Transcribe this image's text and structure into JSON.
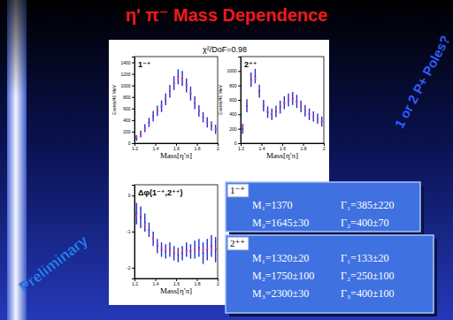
{
  "slide": {
    "title": "η' π⁻ Mass Dependence",
    "side_note": "1 or 2 P+ Poles?",
    "stamp": "Preliminary",
    "fits": [
      {
        "header": "1⁻⁺",
        "rows": [
          [
            "M₁=1370",
            "Γ₁=385±220"
          ],
          [
            "M₂=1645±30",
            "Γ₂=400±70"
          ]
        ]
      },
      {
        "header": "2⁺⁺",
        "rows": [
          [
            "M₁=1320±20",
            "Γ₁=133±20"
          ],
          [
            "M₂=1750±100",
            "Γ₂=250±100"
          ],
          [
            "M₃=2300±30",
            "Γ₃=400±100"
          ]
        ]
      }
    ]
  },
  "chart_data": [
    {
      "type": "scatter",
      "title": "1⁻⁺",
      "annotation": "χ²/DoF=0.98",
      "x_label": "Mass[η'π]",
      "y_label": "Events/40 MeV",
      "x": [
        1.22,
        1.26,
        1.3,
        1.34,
        1.38,
        1.42,
        1.46,
        1.5,
        1.54,
        1.58,
        1.62,
        1.66,
        1.7,
        1.74,
        1.78,
        1.82,
        1.86,
        1.9,
        1.94,
        1.98
      ],
      "xlim": [
        1.2,
        2.0
      ],
      "xticks": [
        1.2,
        1.4,
        1.6,
        1.8,
        2
      ],
      "ylim": [
        0,
        1500
      ],
      "yticks": [
        0,
        200,
        400,
        600,
        800,
        1000,
        1200,
        1400
      ],
      "series": [
        {
          "color": "#1f2fd0",
          "marker": "errorbar",
          "values": [
            90,
            160,
            260,
            360,
            470,
            560,
            640,
            760,
            900,
            1040,
            1150,
            1120,
            1000,
            860,
            700,
            560,
            450,
            360,
            300,
            240
          ],
          "errors": [
            50,
            60,
            70,
            80,
            90,
            90,
            100,
            100,
            110,
            120,
            130,
            130,
            120,
            120,
            110,
            100,
            90,
            90,
            80,
            80
          ]
        },
        {
          "color": "#ff3366",
          "marker": "dot",
          "values": [
            110,
            170,
            250,
            340,
            450,
            560,
            660,
            780,
            910,
            1030,
            1110,
            1100,
            1010,
            870,
            710,
            570,
            450,
            360,
            290,
            240
          ]
        }
      ]
    },
    {
      "type": "scatter",
      "title": "2⁺⁺",
      "x_label": "Mass[η'π]",
      "y_label": "Events/40 MeV",
      "x": [
        1.22,
        1.26,
        1.3,
        1.34,
        1.38,
        1.42,
        1.46,
        1.5,
        1.54,
        1.58,
        1.62,
        1.66,
        1.7,
        1.74,
        1.78,
        1.82,
        1.86,
        1.9,
        1.94,
        1.98
      ],
      "xlim": [
        1.2,
        2.0
      ],
      "xticks": [
        1.2,
        1.4,
        1.6,
        1.8,
        2
      ],
      "ylim": [
        0,
        1200
      ],
      "yticks": [
        0,
        200,
        400,
        600,
        800,
        1000
      ],
      "series": [
        {
          "color": "#1f2fd0",
          "marker": "errorbar",
          "values": [
            200,
            520,
            880,
            930,
            720,
            520,
            430,
            400,
            440,
            500,
            560,
            600,
            620,
            580,
            510,
            450,
            400,
            370,
            340,
            300
          ],
          "errors": [
            70,
            90,
            100,
            100,
            90,
            80,
            80,
            80,
            80,
            90,
            90,
            90,
            90,
            90,
            80,
            80,
            80,
            70,
            70,
            70
          ]
        },
        {
          "color": "#ff3366",
          "marker": "dot",
          "values": [
            230,
            540,
            860,
            900,
            700,
            530,
            440,
            410,
            450,
            510,
            560,
            600,
            610,
            570,
            510,
            450,
            400,
            370,
            340,
            300
          ]
        }
      ]
    },
    {
      "type": "scatter",
      "title": "Δφ(1⁻⁺,2⁺⁺)",
      "x_label": "Mass[η'π]",
      "x": [
        1.22,
        1.26,
        1.3,
        1.34,
        1.38,
        1.42,
        1.46,
        1.5,
        1.54,
        1.58,
        1.62,
        1.66,
        1.7,
        1.74,
        1.78,
        1.82,
        1.86,
        1.9,
        1.94,
        1.98
      ],
      "xlim": [
        1.2,
        2.0
      ],
      "xticks": [
        1.2,
        1.4,
        1.6,
        1.8,
        2
      ],
      "ylim": [
        -2.3,
        0.3
      ],
      "yticks": [
        -2,
        -1,
        0
      ],
      "series": [
        {
          "color": "#1f2fd0",
          "marker": "errorbar",
          "values": [
            -0.5,
            -0.6,
            -0.75,
            -0.95,
            -1.2,
            -1.4,
            -1.5,
            -1.55,
            -1.5,
            -1.6,
            -1.65,
            -1.6,
            -1.5,
            -1.55,
            -1.5,
            -1.45,
            -1.6,
            -1.5,
            -1.4,
            -1.5
          ],
          "errors": [
            0.3,
            0.3,
            0.25,
            0.2,
            0.2,
            0.2,
            0.2,
            0.2,
            0.2,
            0.2,
            0.2,
            0.2,
            0.2,
            0.2,
            0.25,
            0.25,
            0.3,
            0.3,
            0.3,
            0.35
          ]
        },
        {
          "color": "#ff3366",
          "marker": "dot",
          "values": [
            -0.55,
            -0.65,
            -0.8,
            -1.0,
            -1.2,
            -1.35,
            -1.45,
            -1.5,
            -1.52,
            -1.55,
            -1.58,
            -1.57,
            -1.55,
            -1.53,
            -1.5,
            -1.5,
            -1.5,
            -1.48,
            -1.47,
            -1.46
          ]
        }
      ]
    }
  ]
}
